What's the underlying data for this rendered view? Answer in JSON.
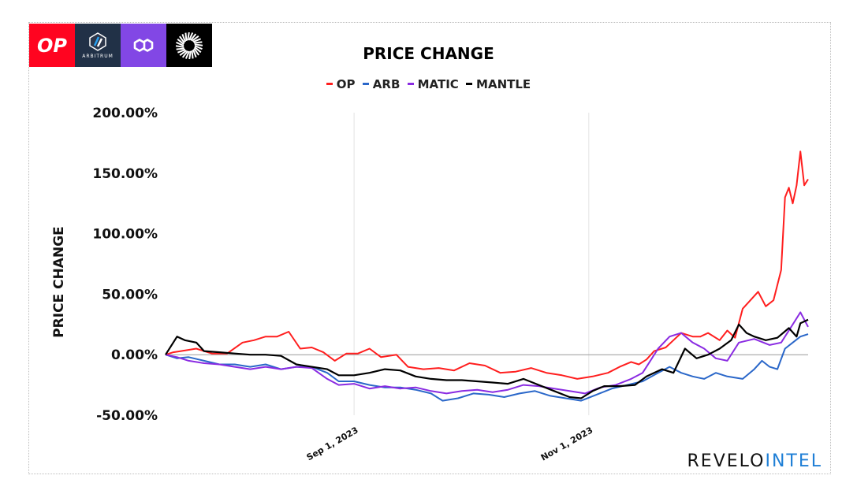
{
  "logos": [
    {
      "name": "OP",
      "label": "OP",
      "color": "#ff0420"
    },
    {
      "name": "ARB",
      "label": "ARBITRUM",
      "color": "#213147"
    },
    {
      "name": "MATIC",
      "label": "",
      "color": "#8247e5"
    },
    {
      "name": "MANTLE",
      "label": "",
      "color": "#000000"
    }
  ],
  "brand": {
    "part1": "REVELO",
    "part2": "INTEL"
  },
  "chart_data": {
    "type": "line",
    "title": "PRICE CHANGE",
    "ylabel": "PRICE CHANGE",
    "xlabel": "",
    "ylim": [
      -50,
      200
    ],
    "yticks": [
      -50,
      0,
      50,
      100,
      150,
      200
    ],
    "ytick_labels": [
      "-50.00%",
      "0.00%",
      "50.00%",
      "100.00%",
      "150.00%",
      "200.00%"
    ],
    "xlim": [
      "2023-07-14",
      "2023-12-28"
    ],
    "xticks": [
      {
        "date": "2023-09-01",
        "label": "Sep 1, 2023"
      },
      {
        "date": "2023-11-01",
        "label": "Nov 1, 2023"
      }
    ],
    "legend": "top-center",
    "grid": true,
    "series": [
      {
        "name": "OP",
        "color": "#ff1e1e",
        "points": [
          [
            "2023-07-14",
            0
          ],
          [
            "2023-07-16",
            2
          ],
          [
            "2023-07-18",
            3
          ],
          [
            "2023-07-22",
            5
          ],
          [
            "2023-07-26",
            1
          ],
          [
            "2023-07-30",
            1
          ],
          [
            "2023-08-03",
            10
          ],
          [
            "2023-08-06",
            12
          ],
          [
            "2023-08-09",
            15
          ],
          [
            "2023-08-12",
            15
          ],
          [
            "2023-08-15",
            19
          ],
          [
            "2023-08-18",
            5
          ],
          [
            "2023-08-21",
            6
          ],
          [
            "2023-08-24",
            2
          ],
          [
            "2023-08-27",
            -5
          ],
          [
            "2023-08-30",
            1
          ],
          [
            "2023-09-02",
            1
          ],
          [
            "2023-09-05",
            5
          ],
          [
            "2023-09-08",
            -2
          ],
          [
            "2023-09-12",
            0
          ],
          [
            "2023-09-15",
            -10
          ],
          [
            "2023-09-19",
            -12
          ],
          [
            "2023-09-23",
            -11
          ],
          [
            "2023-09-27",
            -13
          ],
          [
            "2023-10-01",
            -7
          ],
          [
            "2023-10-05",
            -9
          ],
          [
            "2023-10-09",
            -15
          ],
          [
            "2023-10-13",
            -14
          ],
          [
            "2023-10-17",
            -11
          ],
          [
            "2023-10-21",
            -15
          ],
          [
            "2023-10-25",
            -17
          ],
          [
            "2023-10-29",
            -20
          ],
          [
            "2023-11-02",
            -18
          ],
          [
            "2023-11-06",
            -15
          ],
          [
            "2023-11-09",
            -10
          ],
          [
            "2023-11-12",
            -6
          ],
          [
            "2023-11-14",
            -8
          ],
          [
            "2023-11-16",
            -4
          ],
          [
            "2023-11-18",
            3
          ],
          [
            "2023-11-21",
            6
          ],
          [
            "2023-11-23",
            12
          ],
          [
            "2023-11-25",
            18
          ],
          [
            "2023-11-28",
            15
          ],
          [
            "2023-11-30",
            15
          ],
          [
            "2023-12-02",
            18
          ],
          [
            "2023-12-05",
            12
          ],
          [
            "2023-12-07",
            20
          ],
          [
            "2023-12-09",
            14
          ],
          [
            "2023-12-11",
            38
          ],
          [
            "2023-12-13",
            45
          ],
          [
            "2023-12-15",
            52
          ],
          [
            "2023-12-17",
            40
          ],
          [
            "2023-12-19",
            45
          ],
          [
            "2023-12-21",
            70
          ],
          [
            "2023-12-22",
            130
          ],
          [
            "2023-12-23",
            138
          ],
          [
            "2023-12-24",
            125
          ],
          [
            "2023-12-25",
            140
          ],
          [
            "2023-12-26",
            168
          ],
          [
            "2023-12-27",
            140
          ],
          [
            "2023-12-28",
            145
          ]
        ]
      },
      {
        "name": "ARB",
        "color": "#2a67c9",
        "points": [
          [
            "2023-07-14",
            0
          ],
          [
            "2023-07-17",
            -3
          ],
          [
            "2023-07-20",
            -2
          ],
          [
            "2023-07-24",
            -5
          ],
          [
            "2023-07-28",
            -8
          ],
          [
            "2023-08-01",
            -8
          ],
          [
            "2023-08-05",
            -10
          ],
          [
            "2023-08-09",
            -8
          ],
          [
            "2023-08-13",
            -12
          ],
          [
            "2023-08-17",
            -10
          ],
          [
            "2023-08-21",
            -10
          ],
          [
            "2023-08-25",
            -15
          ],
          [
            "2023-08-28",
            -22
          ],
          [
            "2023-09-01",
            -22
          ],
          [
            "2023-09-05",
            -25
          ],
          [
            "2023-09-09",
            -27
          ],
          [
            "2023-09-13",
            -27
          ],
          [
            "2023-09-17",
            -29
          ],
          [
            "2023-09-21",
            -32
          ],
          [
            "2023-09-24",
            -38
          ],
          [
            "2023-09-28",
            -36
          ],
          [
            "2023-10-02",
            -32
          ],
          [
            "2023-10-06",
            -33
          ],
          [
            "2023-10-10",
            -35
          ],
          [
            "2023-10-14",
            -32
          ],
          [
            "2023-10-18",
            -30
          ],
          [
            "2023-10-22",
            -34
          ],
          [
            "2023-10-26",
            -36
          ],
          [
            "2023-10-30",
            -38
          ],
          [
            "2023-11-03",
            -33
          ],
          [
            "2023-11-07",
            -28
          ],
          [
            "2023-11-11",
            -25
          ],
          [
            "2023-11-15",
            -22
          ],
          [
            "2023-11-19",
            -15
          ],
          [
            "2023-11-22",
            -10
          ],
          [
            "2023-11-25",
            -15
          ],
          [
            "2023-11-28",
            -18
          ],
          [
            "2023-12-01",
            -20
          ],
          [
            "2023-12-04",
            -15
          ],
          [
            "2023-12-07",
            -18
          ],
          [
            "2023-12-11",
            -20
          ],
          [
            "2023-12-14",
            -12
          ],
          [
            "2023-12-16",
            -5
          ],
          [
            "2023-12-18",
            -10
          ],
          [
            "2023-12-20",
            -12
          ],
          [
            "2023-12-22",
            5
          ],
          [
            "2023-12-24",
            10
          ],
          [
            "2023-12-26",
            15
          ],
          [
            "2023-12-28",
            17
          ]
        ]
      },
      {
        "name": "MATIC",
        "color": "#8a2be2",
        "points": [
          [
            "2023-07-14",
            0
          ],
          [
            "2023-07-17",
            -2
          ],
          [
            "2023-07-20",
            -5
          ],
          [
            "2023-07-24",
            -7
          ],
          [
            "2023-07-28",
            -8
          ],
          [
            "2023-08-01",
            -10
          ],
          [
            "2023-08-05",
            -12
          ],
          [
            "2023-08-09",
            -10
          ],
          [
            "2023-08-13",
            -12
          ],
          [
            "2023-08-17",
            -10
          ],
          [
            "2023-08-21",
            -11
          ],
          [
            "2023-08-25",
            -20
          ],
          [
            "2023-08-28",
            -25
          ],
          [
            "2023-09-01",
            -24
          ],
          [
            "2023-09-05",
            -28
          ],
          [
            "2023-09-09",
            -26
          ],
          [
            "2023-09-13",
            -28
          ],
          [
            "2023-09-17",
            -27
          ],
          [
            "2023-09-21",
            -30
          ],
          [
            "2023-09-25",
            -32
          ],
          [
            "2023-09-29",
            -30
          ],
          [
            "2023-10-03",
            -29
          ],
          [
            "2023-10-07",
            -31
          ],
          [
            "2023-10-11",
            -29
          ],
          [
            "2023-10-15",
            -25
          ],
          [
            "2023-10-19",
            -26
          ],
          [
            "2023-10-23",
            -28
          ],
          [
            "2023-10-27",
            -30
          ],
          [
            "2023-10-31",
            -32
          ],
          [
            "2023-11-04",
            -27
          ],
          [
            "2023-11-08",
            -25
          ],
          [
            "2023-11-12",
            -20
          ],
          [
            "2023-11-15",
            -15
          ],
          [
            "2023-11-17",
            -5
          ],
          [
            "2023-11-19",
            5
          ],
          [
            "2023-11-22",
            15
          ],
          [
            "2023-11-25",
            18
          ],
          [
            "2023-11-28",
            10
          ],
          [
            "2023-12-01",
            5
          ],
          [
            "2023-12-04",
            -3
          ],
          [
            "2023-12-07",
            -5
          ],
          [
            "2023-12-10",
            10
          ],
          [
            "2023-12-14",
            13
          ],
          [
            "2023-12-18",
            8
          ],
          [
            "2023-12-21",
            10
          ],
          [
            "2023-12-24",
            25
          ],
          [
            "2023-12-26",
            35
          ],
          [
            "2023-12-28",
            23
          ]
        ]
      },
      {
        "name": "MANTLE",
        "color": "#000000",
        "points": [
          [
            "2023-07-14",
            0
          ],
          [
            "2023-07-17",
            15
          ],
          [
            "2023-07-19",
            12
          ],
          [
            "2023-07-22",
            10
          ],
          [
            "2023-07-24",
            3
          ],
          [
            "2023-07-28",
            2
          ],
          [
            "2023-08-01",
            1
          ],
          [
            "2023-08-05",
            0
          ],
          [
            "2023-08-09",
            0
          ],
          [
            "2023-08-13",
            -1
          ],
          [
            "2023-08-17",
            -8
          ],
          [
            "2023-08-21",
            -10
          ],
          [
            "2023-08-25",
            -12
          ],
          [
            "2023-08-28",
            -17
          ],
          [
            "2023-09-01",
            -17
          ],
          [
            "2023-09-05",
            -15
          ],
          [
            "2023-09-09",
            -12
          ],
          [
            "2023-09-13",
            -13
          ],
          [
            "2023-09-17",
            -18
          ],
          [
            "2023-09-21",
            -20
          ],
          [
            "2023-09-25",
            -21
          ],
          [
            "2023-09-29",
            -21
          ],
          [
            "2023-10-03",
            -22
          ],
          [
            "2023-10-07",
            -23
          ],
          [
            "2023-10-11",
            -24
          ],
          [
            "2023-10-15",
            -20
          ],
          [
            "2023-10-19",
            -25
          ],
          [
            "2023-10-23",
            -30
          ],
          [
            "2023-10-27",
            -35
          ],
          [
            "2023-10-30",
            -36
          ],
          [
            "2023-11-02",
            -30
          ],
          [
            "2023-11-05",
            -26
          ],
          [
            "2023-11-09",
            -26
          ],
          [
            "2023-11-13",
            -25
          ],
          [
            "2023-11-16",
            -18
          ],
          [
            "2023-11-20",
            -12
          ],
          [
            "2023-11-23",
            -15
          ],
          [
            "2023-11-26",
            5
          ],
          [
            "2023-11-29",
            -3
          ],
          [
            "2023-12-02",
            0
          ],
          [
            "2023-12-05",
            5
          ],
          [
            "2023-12-08",
            12
          ],
          [
            "2023-12-10",
            25
          ],
          [
            "2023-12-12",
            18
          ],
          [
            "2023-12-14",
            15
          ],
          [
            "2023-12-17",
            12
          ],
          [
            "2023-12-20",
            14
          ],
          [
            "2023-12-23",
            22
          ],
          [
            "2023-12-25",
            15
          ],
          [
            "2023-12-26",
            26
          ],
          [
            "2023-12-28",
            29
          ]
        ]
      }
    ]
  }
}
